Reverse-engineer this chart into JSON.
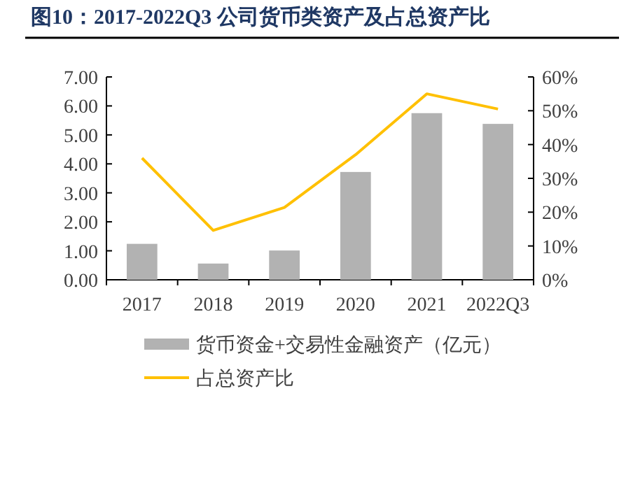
{
  "chart_data": {
    "type": "bar",
    "title": "图10：2017-2022Q3 公司货币类资产及占总资产比",
    "categories": [
      "2017",
      "2018",
      "2019",
      "2020",
      "2021",
      "2022Q3"
    ],
    "series": [
      {
        "name": "货币资金+交易性金融资产（亿元）",
        "color": "#b2b2b2",
        "values": [
          1.24,
          0.56,
          1.01,
          3.72,
          5.75,
          5.38
        ]
      },
      {
        "name": "占总资产比",
        "type": "line",
        "axis": "y2",
        "color": "#ffc000",
        "values": [
          36,
          14.6,
          21.4,
          37,
          55,
          50.5
        ]
      }
    ],
    "ylim": [
      0,
      7
    ],
    "yticks": [
      {
        "value": 0,
        "label": "0.00"
      },
      {
        "value": 1,
        "label": "1.00"
      },
      {
        "value": 2,
        "label": "2.00"
      },
      {
        "value": 3,
        "label": "3.00"
      },
      {
        "value": 4,
        "label": "4.00"
      },
      {
        "value": 5,
        "label": "5.00"
      },
      {
        "value": 6,
        "label": "6.00"
      },
      {
        "value": 7,
        "label": "7.00"
      }
    ],
    "y2lim": [
      0,
      60
    ],
    "y2ticks": [
      {
        "value": 0,
        "label": "0%"
      },
      {
        "value": 10,
        "label": "10%"
      },
      {
        "value": 20,
        "label": "20%"
      },
      {
        "value": 30,
        "label": "30%"
      },
      {
        "value": 40,
        "label": "40%"
      },
      {
        "value": 50,
        "label": "50%"
      },
      {
        "value": 60,
        "label": "60%"
      }
    ],
    "legend": "bottom"
  }
}
